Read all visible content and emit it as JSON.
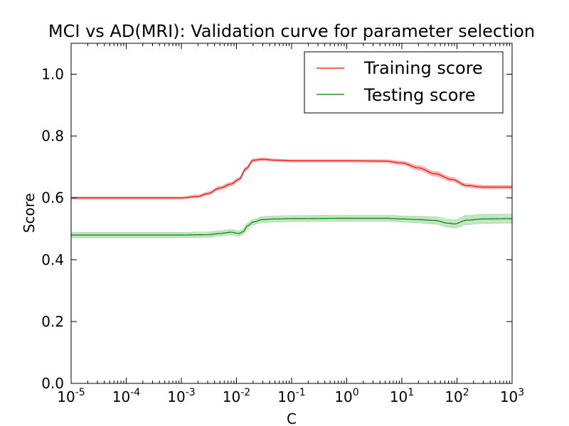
{
  "chart_data": {
    "type": "line",
    "title": "MCI vs AD(MRI): Validation curve for parameter selection",
    "xlabel": "C",
    "ylabel": "Score",
    "xscale": "log",
    "xlim": [
      1e-05,
      1000
    ],
    "ylim": [
      0.0,
      1.1
    ],
    "grid": false,
    "legend_position": "top-right",
    "x_ticks": [
      {
        "value": 1e-05,
        "base": "10",
        "exp": "-5"
      },
      {
        "value": 0.0001,
        "base": "10",
        "exp": "-4"
      },
      {
        "value": 0.001,
        "base": "10",
        "exp": "-3"
      },
      {
        "value": 0.01,
        "base": "10",
        "exp": "-2"
      },
      {
        "value": 0.1,
        "base": "10",
        "exp": "-1"
      },
      {
        "value": 1,
        "base": "10",
        "exp": "0"
      },
      {
        "value": 10,
        "base": "10",
        "exp": "1"
      },
      {
        "value": 100,
        "base": "10",
        "exp": "2"
      },
      {
        "value": 1000,
        "base": "10",
        "exp": "3"
      }
    ],
    "y_ticks": [
      {
        "value": 0.0,
        "label": "0.0"
      },
      {
        "value": 0.2,
        "label": "0.2"
      },
      {
        "value": 0.4,
        "label": "0.4"
      },
      {
        "value": 0.6,
        "label": "0.6"
      },
      {
        "value": 0.8,
        "label": "0.8"
      },
      {
        "value": 1.0,
        "label": "1.0"
      }
    ],
    "series": [
      {
        "name": "Training score",
        "color": "#ff0000",
        "band_color": "#f08080",
        "x": [
          1e-05,
          0.0001,
          0.001,
          0.002,
          0.003,
          0.005,
          0.008,
          0.011,
          0.015,
          0.02,
          0.03,
          0.05,
          0.1,
          1,
          5,
          10,
          20,
          40,
          80,
          150,
          300,
          1000
        ],
        "y": [
          0.6,
          0.6,
          0.6,
          0.605,
          0.614,
          0.632,
          0.645,
          0.66,
          0.695,
          0.722,
          0.725,
          0.722,
          0.72,
          0.72,
          0.719,
          0.713,
          0.697,
          0.678,
          0.66,
          0.64,
          0.635,
          0.635
        ],
        "band": [
          0.004,
          0.004,
          0.004,
          0.005,
          0.005,
          0.006,
          0.006,
          0.006,
          0.006,
          0.005,
          0.005,
          0.004,
          0.004,
          0.004,
          0.005,
          0.006,
          0.008,
          0.008,
          0.007,
          0.006,
          0.006,
          0.006
        ]
      },
      {
        "name": "Testing score",
        "color": "#008000",
        "band_color": "#8fd18f",
        "x": [
          1e-05,
          0.0001,
          0.001,
          0.003,
          0.005,
          0.008,
          0.011,
          0.013,
          0.016,
          0.02,
          0.03,
          0.05,
          0.1,
          1,
          5,
          10,
          20,
          40,
          70,
          90,
          150,
          300,
          1000
        ],
        "y": [
          0.48,
          0.48,
          0.48,
          0.481,
          0.485,
          0.489,
          0.485,
          0.49,
          0.51,
          0.522,
          0.53,
          0.532,
          0.533,
          0.534,
          0.534,
          0.532,
          0.53,
          0.527,
          0.518,
          0.516,
          0.528,
          0.532,
          0.533
        ],
        "band": [
          0.009,
          0.009,
          0.009,
          0.009,
          0.009,
          0.009,
          0.009,
          0.009,
          0.009,
          0.009,
          0.01,
          0.01,
          0.01,
          0.01,
          0.01,
          0.01,
          0.011,
          0.012,
          0.013,
          0.014,
          0.015,
          0.015,
          0.015
        ]
      }
    ]
  }
}
